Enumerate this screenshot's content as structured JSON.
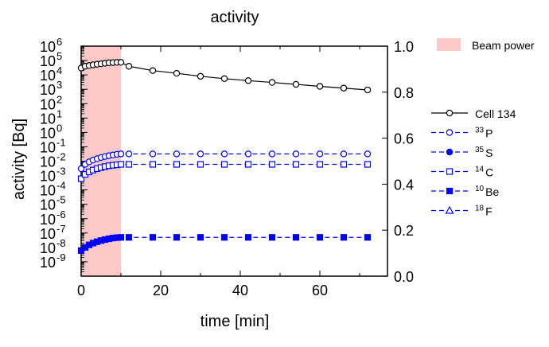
{
  "chart_data": {
    "type": "line",
    "title": "activity",
    "xlabel": "time [min]",
    "ylabel": "activity [Bq]",
    "xlim": [
      0,
      77
    ],
    "xticks": [
      0,
      20,
      40,
      60
    ],
    "ylim_log_exponent": [
      -10,
      6
    ],
    "y_scale": "log",
    "yticks_exponent": [
      -9,
      -8,
      -7,
      -6,
      -5,
      -4,
      -3,
      -2,
      -1,
      0,
      1,
      2,
      3,
      4,
      5,
      6
    ],
    "y2lim": [
      0.0,
      1.0
    ],
    "y2ticks": [
      "0.0",
      "0.2",
      "0.4",
      "0.6",
      "0.8",
      "1.0"
    ],
    "tick_base": "10",
    "beam": {
      "name": "Beam power",
      "x_start": 0,
      "x_end": 10,
      "color": "#fcc8c8"
    },
    "legend_position": "right",
    "series": [
      {
        "name": "Cell 134",
        "color": "#000000",
        "marker": "circle-open",
        "dash": false,
        "x": [
          0,
          1,
          2,
          3,
          4,
          5,
          6,
          7,
          8,
          9,
          10,
          12,
          18,
          24,
          30,
          36,
          42,
          48,
          54,
          60,
          66,
          72
        ],
        "y": [
          30000,
          40000,
          45000,
          50000,
          55000,
          60000,
          65000,
          70000,
          72000,
          75000,
          75000,
          40000,
          20000,
          13000,
          8000,
          5500,
          4000,
          3000,
          2200,
          1600,
          1200,
          900
        ]
      },
      {
        "name": "33 P",
        "name_sup": "33",
        "name_sym": "P",
        "color": "#0000ff",
        "marker": "circle-open",
        "dash": true,
        "x": [
          0,
          1,
          2,
          3,
          4,
          5,
          6,
          7,
          8,
          9,
          10,
          12,
          18,
          24,
          30,
          36,
          42,
          48,
          54,
          60,
          66,
          72
        ],
        "y": [
          0.003,
          0.006,
          0.009,
          0.012,
          0.015,
          0.018,
          0.021,
          0.024,
          0.027,
          0.03,
          0.032,
          0.032,
          0.032,
          0.032,
          0.032,
          0.032,
          0.032,
          0.032,
          0.032,
          0.032,
          0.032,
          0.032
        ]
      },
      {
        "name": "35 S",
        "name_sup": "35",
        "name_sym": "S",
        "color": "#0000ff",
        "marker": "circle-filled",
        "dash": true,
        "x": [],
        "y": []
      },
      {
        "name": "14 C",
        "name_sup": "14",
        "name_sym": "C",
        "color": "#0000ff",
        "marker": "square-open",
        "dash": true,
        "x": [
          0,
          1,
          2,
          3,
          4,
          5,
          6,
          7,
          8,
          9,
          10,
          12,
          18,
          24,
          30,
          36,
          42,
          48,
          54,
          60,
          66,
          72
        ],
        "y": [
          0.0006,
          0.0012,
          0.0018,
          0.0024,
          0.003,
          0.0036,
          0.0042,
          0.0048,
          0.0052,
          0.0056,
          0.006,
          0.006,
          0.006,
          0.006,
          0.006,
          0.006,
          0.006,
          0.006,
          0.006,
          0.006,
          0.006,
          0.006
        ]
      },
      {
        "name": "10 Be",
        "name_sup": "10",
        "name_sym": "Be",
        "color": "#0000ff",
        "marker": "square-filled",
        "dash": true,
        "x": [
          0,
          1,
          2,
          3,
          4,
          5,
          6,
          7,
          8,
          9,
          10,
          12,
          18,
          24,
          30,
          36,
          42,
          48,
          54,
          60,
          66,
          72
        ],
        "y": [
          6e-09,
          1e-08,
          1.5e-08,
          2e-08,
          2.5e-08,
          3e-08,
          3.5e-08,
          4e-08,
          4.5e-08,
          4.8e-08,
          5e-08,
          5e-08,
          5e-08,
          5e-08,
          5e-08,
          5e-08,
          5e-08,
          5e-08,
          5e-08,
          5e-08,
          5e-08,
          5e-08
        ]
      },
      {
        "name": "18 F",
        "name_sup": "18",
        "name_sym": "F",
        "color": "#0000ff",
        "marker": "triangle-open",
        "dash": true,
        "x": [],
        "y": []
      }
    ]
  }
}
